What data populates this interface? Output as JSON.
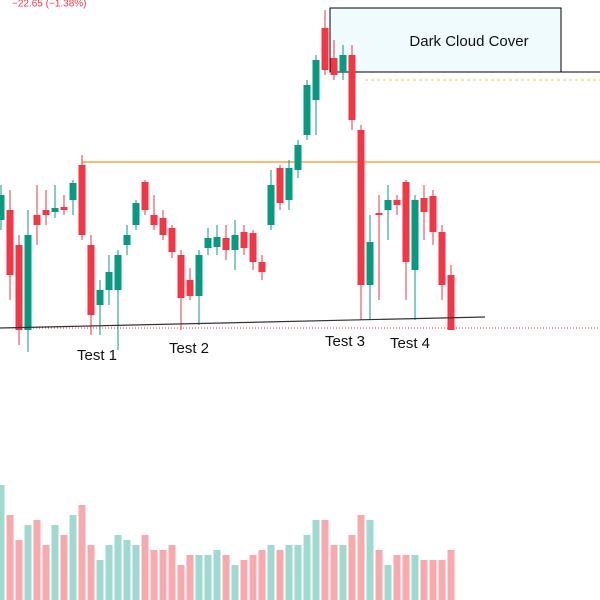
{
  "chart_data": {
    "type": "candlestick",
    "header": "−22.65 (−1.38%)",
    "up_color": "#089981",
    "down_color": "#f23645",
    "volume_up_color": "#9fd9cf",
    "volume_down_color": "#f8a9ad",
    "ylim": [
      0,
      600
    ],
    "volume_ylim": [
      0,
      600
    ],
    "open": [
      380,
      390,
      355,
      270,
      385,
      390,
      388,
      393,
      400,
      435,
      355,
      295,
      310,
      310,
      355,
      375,
      418,
      385,
      382,
      372,
      345,
      320,
      304,
      352,
      353,
      362,
      350,
      368,
      367,
      338,
      375,
      432,
      400,
      430,
      465,
      500,
      572,
      542,
      528,
      545,
      470,
      315,
      387,
      390,
      400,
      418,
      330,
      402,
      404,
      368,
      325
    ],
    "high": [
      415,
      410,
      365,
      390,
      415,
      410,
      415,
      405,
      420,
      445,
      365,
      320,
      345,
      350,
      375,
      400,
      420,
      405,
      390,
      375,
      350,
      332,
      350,
      372,
      375,
      375,
      380,
      375,
      370,
      345,
      430,
      435,
      440,
      460,
      520,
      545,
      590,
      560,
      555,
      555,
      475,
      385,
      405,
      415,
      405,
      420,
      405,
      415,
      410,
      375,
      335
    ],
    "low": [
      370,
      300,
      255,
      248,
      355,
      375,
      382,
      385,
      385,
      360,
      265,
      265,
      295,
      250,
      345,
      370,
      385,
      370,
      360,
      342,
      270,
      300,
      275,
      345,
      345,
      340,
      330,
      345,
      330,
      320,
      370,
      390,
      390,
      422,
      460,
      465,
      525,
      520,
      520,
      470,
      280,
      280,
      300,
      360,
      385,
      300,
      280,
      360,
      355,
      300,
      270
    ],
    "close": [
      405,
      325,
      270,
      365,
      375,
      385,
      392,
      390,
      417,
      365,
      285,
      310,
      328,
      345,
      365,
      397,
      390,
      375,
      365,
      348,
      302,
      304,
      345,
      362,
      363,
      350,
      365,
      352,
      338,
      328,
      415,
      397,
      432,
      455,
      515,
      540,
      530,
      525,
      545,
      480,
      315,
      358,
      385,
      400,
      395,
      338,
      400,
      388,
      368,
      315,
      270
    ],
    "volume": [
      115,
      85,
      60,
      75,
      80,
      55,
      75,
      65,
      85,
      95,
      55,
      40,
      55,
      65,
      60,
      55,
      65,
      50,
      50,
      55,
      35,
      45,
      45,
      45,
      50,
      45,
      35,
      40,
      45,
      50,
      55,
      50,
      55,
      55,
      65,
      80,
      80,
      55,
      55,
      65,
      85,
      80,
      50,
      35,
      45,
      45,
      45,
      40,
      40,
      40,
      50
    ],
    "levels": [
      {
        "value": 438,
        "color": "#f7931a"
      },
      {
        "value": 528,
        "color": "#000000"
      },
      {
        "value": 520,
        "color": "#e6d23a"
      },
      {
        "value": 272,
        "color": "#f23645"
      }
    ],
    "trendline": [
      272,
      283
    ],
    "annotation": "Dark Cloud Cover",
    "labels": [
      "Test 1",
      "Test 2",
      "Test 3",
      "Test 4"
    ]
  }
}
